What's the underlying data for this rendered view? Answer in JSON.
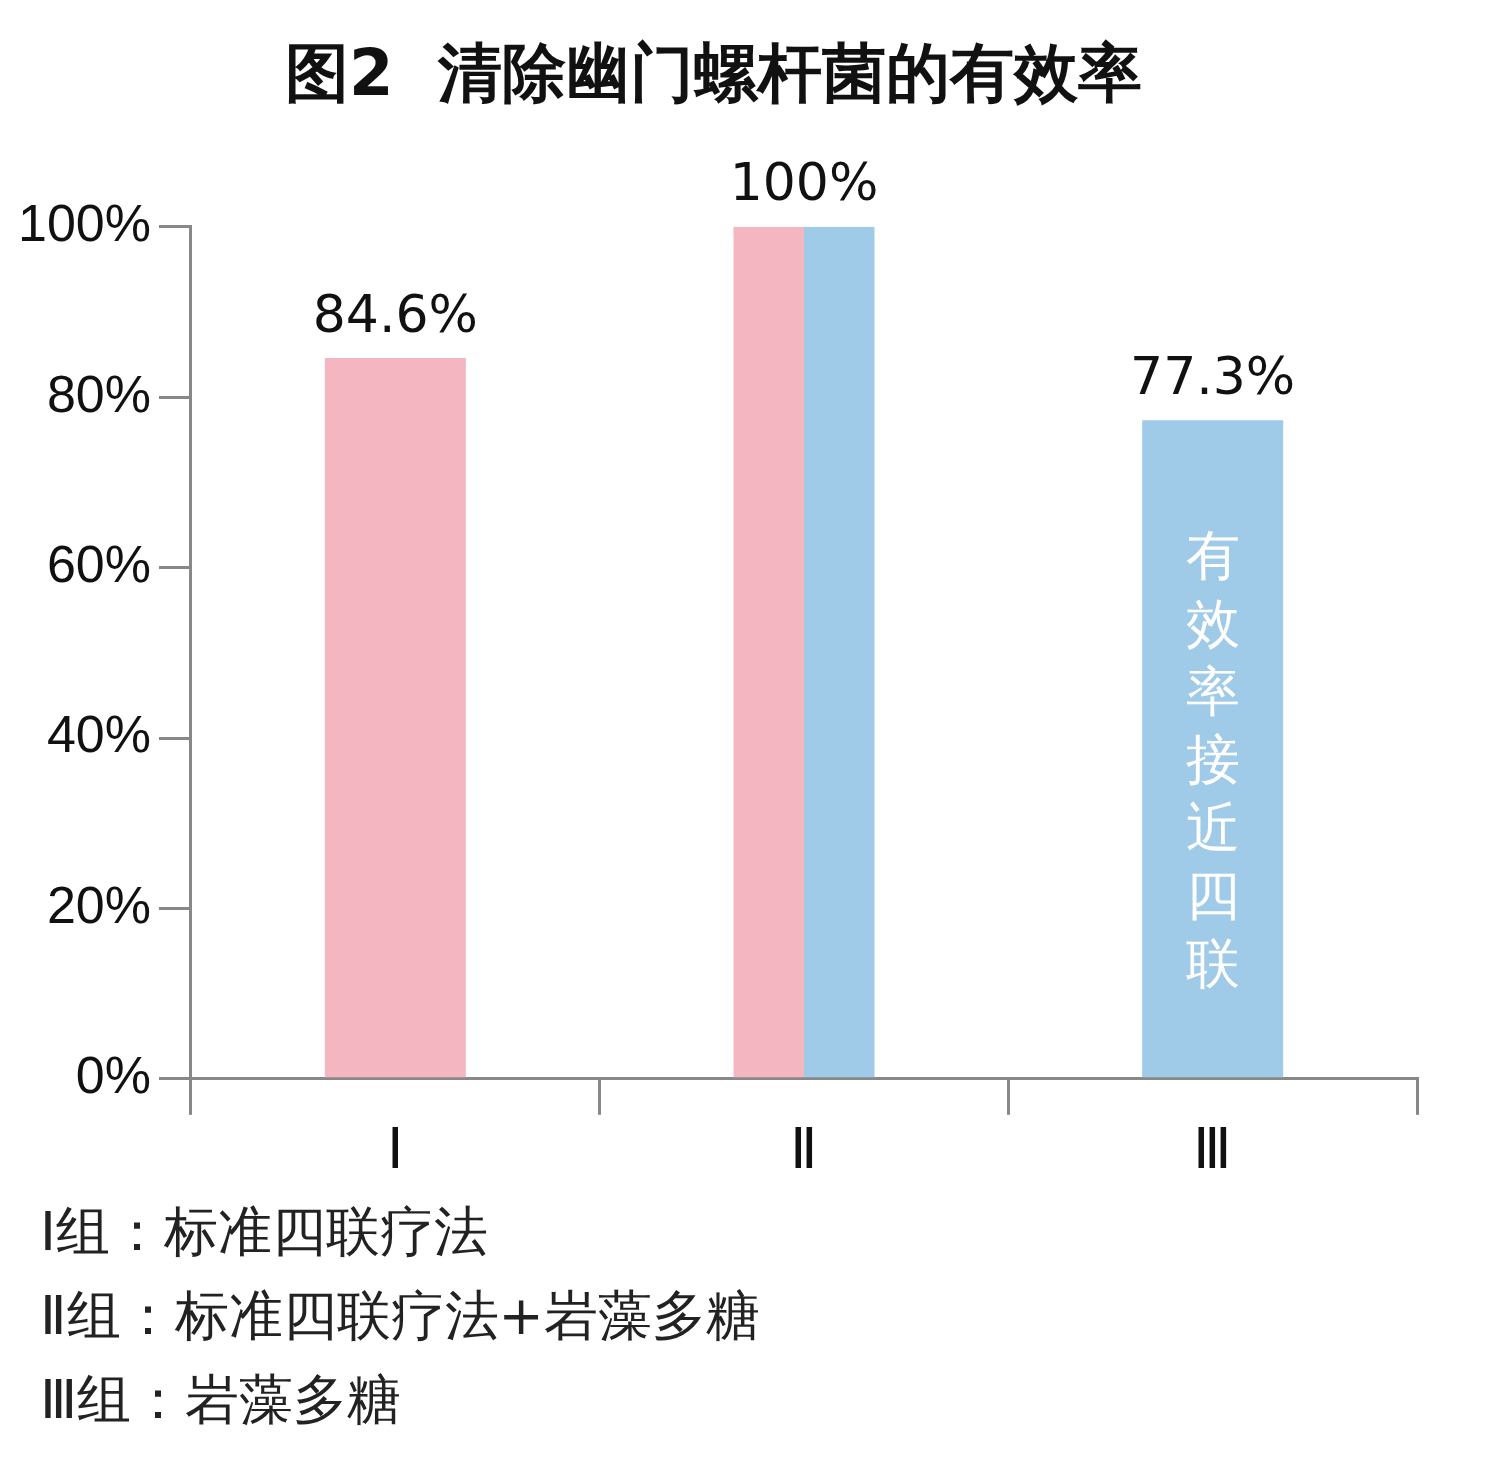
{
  "chart_data": {
    "type": "bar",
    "title": "图2  清除幽门螺杆菌的有效率",
    "categories": [
      "Ⅰ",
      "Ⅱ",
      "Ⅲ"
    ],
    "series": [
      {
        "color": "#f4b6c0",
        "values": [
          84.6,
          100,
          null
        ],
        "value_labels": [
          "84.6%",
          "100%",
          null
        ]
      },
      {
        "color": "#9fcbe8",
        "values": [
          null,
          100,
          77.3
        ],
        "value_labels": [
          null,
          null,
          "77.3%"
        ]
      }
    ],
    "ylim": [
      0,
      100
    ],
    "yticks": [
      {
        "value": 0,
        "label": "0%"
      },
      {
        "value": 20,
        "label": "20%"
      },
      {
        "value": 40,
        "label": "40%"
      },
      {
        "value": 60,
        "label": "60%"
      },
      {
        "value": 80,
        "label": "80%"
      },
      {
        "value": 100,
        "label": "100%"
      }
    ],
    "grid": false,
    "legend": false,
    "annotations": [
      "有效率接近四联",
      "Ⅰ组：标准四联疗法",
      "Ⅱ组：标准四联疗法+岩藻多糖",
      "Ⅲ组：岩藻多糖"
    ]
  }
}
